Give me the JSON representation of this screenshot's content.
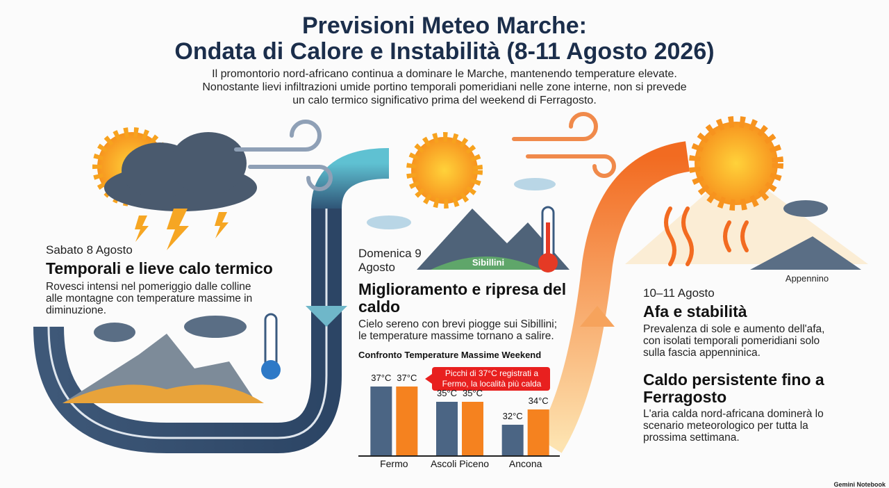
{
  "header": {
    "title_line1": "Previsioni Meteo Marche:",
    "title_line2": "Ondata di Calore e Instabilità (8-11 Agosto 2026)",
    "intro": "Il promontorio nord-africano continua a dominare le Marche, mantenendo temperature elevate. Nonostante lievi infiltrazioni umide portino temporali pomeridiani nelle zone interne, non si prevede un calo termico significativo prima del weekend di Ferragosto."
  },
  "sections": [
    {
      "date": "Sabato 8 Agosto",
      "heading": "Temporali e lieve calo termico",
      "text": "Rovesci intensi nel pomeriggio dalle colline alle montagne con temperature massime in diminuzione."
    },
    {
      "date": "Domenica 9 Agosto",
      "heading": "Miglioramento e ripresa del caldo",
      "text": "Cielo sereno con brevi piogge sui Sibillini; le temperature massime tornano a salire."
    },
    {
      "date": "10–11 Agosto",
      "heading": "Afa e stabilità",
      "text": "Prevalenza di sole e aumento dell'afa, con isolati temporali pomeridiani solo sulla fascia appenninica."
    },
    {
      "heading": "Caldo persistente fino a Ferragosto",
      "text": "L'aria calda nord-africana dominerà lo scenario meteorologico per tutta la prossima settimana."
    }
  ],
  "labels": {
    "sibillini": "Sibillini",
    "appennino": "Appennino"
  },
  "chart": {
    "type": "bar",
    "title": "Confronto Temperature Massime Weekend",
    "categories": [
      "Fermo",
      "Ascoli Piceno",
      "Ancona"
    ],
    "series": [
      {
        "color": "#4b6584",
        "values": [
          37,
          35,
          32
        ],
        "value_labels": [
          "37°C",
          "35°C",
          "32°C"
        ]
      },
      {
        "color": "#f5821f",
        "values": [
          37,
          35,
          34
        ],
        "value_labels": [
          "37°C",
          "35°C",
          "34°C"
        ]
      }
    ],
    "ylim": [
      28,
      38
    ],
    "annotation": "Picchi di 37°C registrati a Fermo, la località più calda"
  },
  "footer": "Gemini Notebook"
}
